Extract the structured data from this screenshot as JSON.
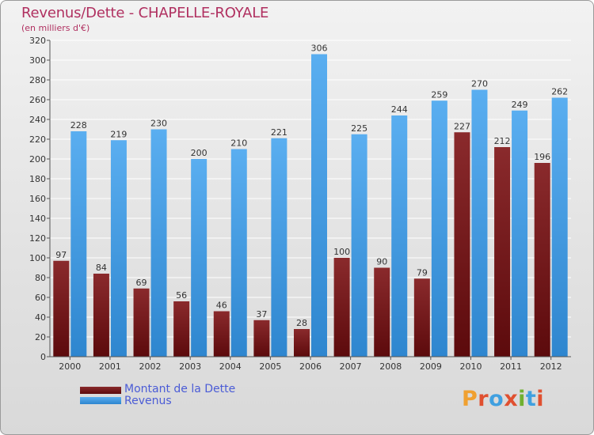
{
  "title": "Revenus/Dette - CHAPELLE-ROYALE",
  "subtitle": "(en milliers d'€)",
  "logo": {
    "text": "Proxiti",
    "colors": [
      "#f0a030",
      "#e05030",
      "#40a0e0",
      "#e05030",
      "#70b030",
      "#40a0e0",
      "#e05030"
    ]
  },
  "colors": {
    "dette": "#7a1416",
    "revenus": "#3f99e0",
    "title": "#b03060",
    "legend_text": "#4b5cd6"
  },
  "chart_data": {
    "type": "bar",
    "title": "Revenus/Dette - CHAPELLE-ROYALE",
    "ylabel": "(en milliers d'€)",
    "xlabel": "",
    "categories": [
      "2000",
      "2001",
      "2002",
      "2003",
      "2004",
      "2005",
      "2006",
      "2007",
      "2008",
      "2009",
      "2010",
      "2011",
      "2012"
    ],
    "series": [
      {
        "name": "Montant de la Dette",
        "values": [
          97,
          84,
          69,
          56,
          46,
          37,
          28,
          100,
          90,
          79,
          227,
          212,
          196
        ]
      },
      {
        "name": "Revenus",
        "values": [
          228,
          219,
          230,
          200,
          210,
          221,
          306,
          225,
          244,
          259,
          270,
          249,
          262
        ]
      }
    ],
    "ylim": [
      0,
      320
    ],
    "yticks": [
      0,
      20,
      40,
      60,
      80,
      100,
      120,
      140,
      160,
      180,
      200,
      220,
      240,
      260,
      280,
      300,
      320
    ],
    "grid": true,
    "legend": "bottom-left"
  }
}
